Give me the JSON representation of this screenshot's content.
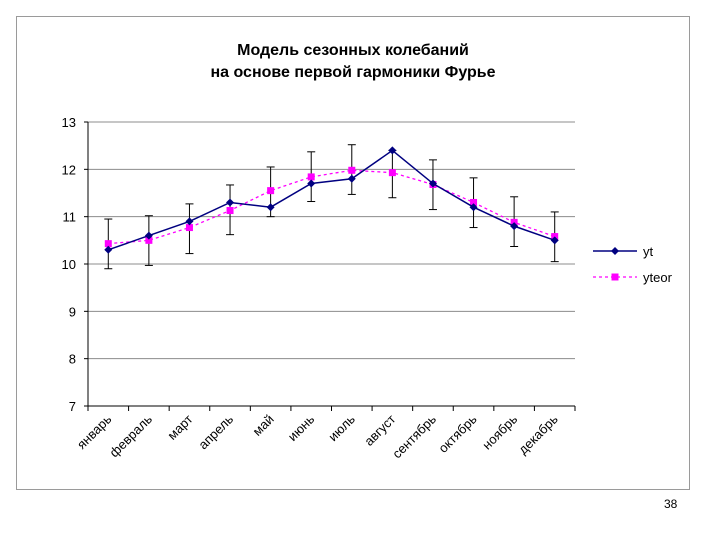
{
  "slide_number": "38",
  "chart_data": {
    "type": "line",
    "title_lines": [
      "Модель сезонных колебаний",
      "на основе первой гармоники Фурье"
    ],
    "categories": [
      "январь",
      "февраль",
      "март",
      "апрель",
      "май",
      "июнь",
      "июль",
      "август",
      "сентябрь",
      "октябрь",
      "ноябрь",
      "декабрь"
    ],
    "ylim": [
      7,
      13
    ],
    "yticks": [
      7,
      8,
      9,
      10,
      11,
      12,
      13
    ],
    "grid": true,
    "legend_position": "right",
    "series": [
      {
        "name": "yt",
        "color": "#000080",
        "marker": "diamond",
        "line_style": "solid",
        "values": [
          10.3,
          10.6,
          10.9,
          11.3,
          11.2,
          11.7,
          11.8,
          12.4,
          11.7,
          11.2,
          10.8,
          10.5
        ],
        "error_bars": {
          "upper": [
            10.95,
            11.02,
            11.27,
            11.67,
            12.05,
            12.37,
            12.52,
            12.4,
            12.2,
            11.82,
            11.42,
            11.1
          ],
          "lower": [
            9.9,
            9.97,
            10.22,
            10.62,
            11.0,
            11.32,
            11.47,
            11.4,
            11.15,
            10.77,
            10.37,
            10.05
          ]
        }
      },
      {
        "name": "yteor",
        "color": "#ff00ff",
        "marker": "square",
        "line_style": "dashed",
        "values": [
          10.43,
          10.5,
          10.77,
          11.13,
          11.55,
          11.84,
          11.98,
          11.93,
          11.68,
          11.3,
          10.88,
          10.58
        ]
      }
    ]
  }
}
